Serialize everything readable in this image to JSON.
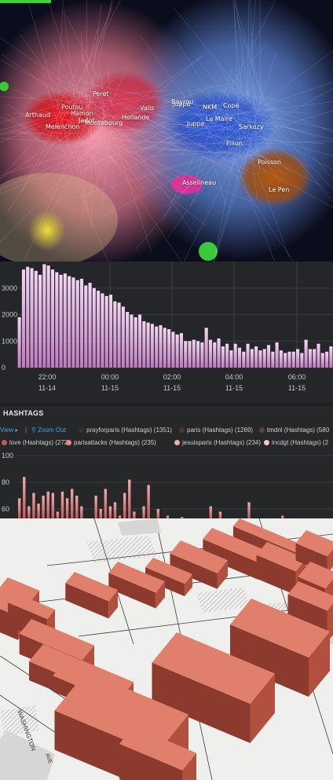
{
  "network": {
    "labels": [
      "Peret",
      "Poutou",
      "Hamon",
      "Arthaud",
      "Jadot",
      "Melenchon",
      "Montebourg",
      "Valls",
      "Hollande",
      "Juppé",
      "Bayrou",
      "NKM",
      "Copé",
      "Le Maire",
      "Sarkozy",
      "Juppe",
      "Fillon",
      "Poisson",
      "Asselineau",
      "Le Pen"
    ]
  },
  "histogram": {
    "chart_data": {
      "type": "bar",
      "y_ticks": [
        "3000",
        "2000",
        "1000",
        "0"
      ],
      "ylim": [
        0,
        4000
      ],
      "x_ticks": [
        {
          "time": "22:00",
          "date": "11-14"
        },
        {
          "time": "00:00",
          "date": "11-15"
        },
        {
          "time": "02:00",
          "date": "11-15"
        },
        {
          "time": "04:00",
          "date": "11-15"
        },
        {
          "time": "06:00",
          "date": "11-15"
        }
      ],
      "values": [
        1900,
        3700,
        3800,
        3750,
        3650,
        3500,
        3900,
        3850,
        3700,
        3600,
        3500,
        3550,
        3450,
        3400,
        3300,
        3350,
        3100,
        3200,
        3000,
        2900,
        2800,
        2700,
        2750,
        2500,
        2450,
        2300,
        2100,
        2000,
        1900,
        2000,
        1750,
        1700,
        1650,
        1550,
        1600,
        1500,
        1450,
        1350,
        1250,
        1300,
        1000,
        1000,
        1050,
        1000,
        950,
        1500,
        1050,
        950,
        1100,
        800,
        900,
        650,
        900,
        750,
        600,
        900,
        700,
        800,
        650,
        700,
        850,
        600,
        950,
        650,
        550,
        600,
        600,
        700,
        550,
        1050,
        700,
        700,
        900,
        550,
        600,
        800
      ]
    }
  },
  "hashtags": {
    "title": "HASHTAGS",
    "toolbar": {
      "view_label": "View ▸",
      "separator": "|",
      "zoom_label": "Zoom Out",
      "items": [
        {
          "label": "prayforparis (Hashtags) (1351)",
          "color": "#3a2f30"
        },
        {
          "label": "paris (Hashtags) (1269)",
          "color": "#4b3536"
        },
        {
          "label": "tmdnl (Hashtags) (580",
          "color": "#6a3b3b"
        }
      ]
    },
    "legend2": [
      {
        "label": "love (Hashtags) (272)",
        "color": "#c25b5b"
      },
      {
        "label": "parisattacks (Hashtags) (235)",
        "color": "#e88a8a"
      },
      {
        "label": "jesuisparis (Hashtags) (234)",
        "color": "#f0a8a8"
      },
      {
        "label": "incdgt (Hashtags) (2",
        "color": "#f6c5c5"
      }
    ],
    "chart_data": {
      "type": "bar",
      "y_ticks": [
        "100",
        "80",
        "60"
      ],
      "ylim": [
        45,
        100
      ],
      "values": [
        68,
        84,
        62,
        72,
        64,
        70,
        73,
        72,
        58,
        73,
        68,
        75,
        70,
        62,
        52,
        52,
        70,
        60,
        75,
        62,
        65,
        55,
        72,
        82,
        58,
        50,
        62,
        78,
        52,
        60,
        48,
        55,
        52,
        50,
        54,
        48,
        50,
        52,
        48,
        50,
        62,
        50,
        58,
        50,
        48,
        50,
        52,
        48,
        65,
        50,
        50,
        48,
        52,
        48,
        50,
        55,
        50,
        48,
        52,
        50,
        50,
        52,
        50,
        48,
        48,
        50
      ]
    }
  },
  "buildings": {
    "street_labels": [
      "WASHINGTON",
      "AVE"
    ]
  }
}
